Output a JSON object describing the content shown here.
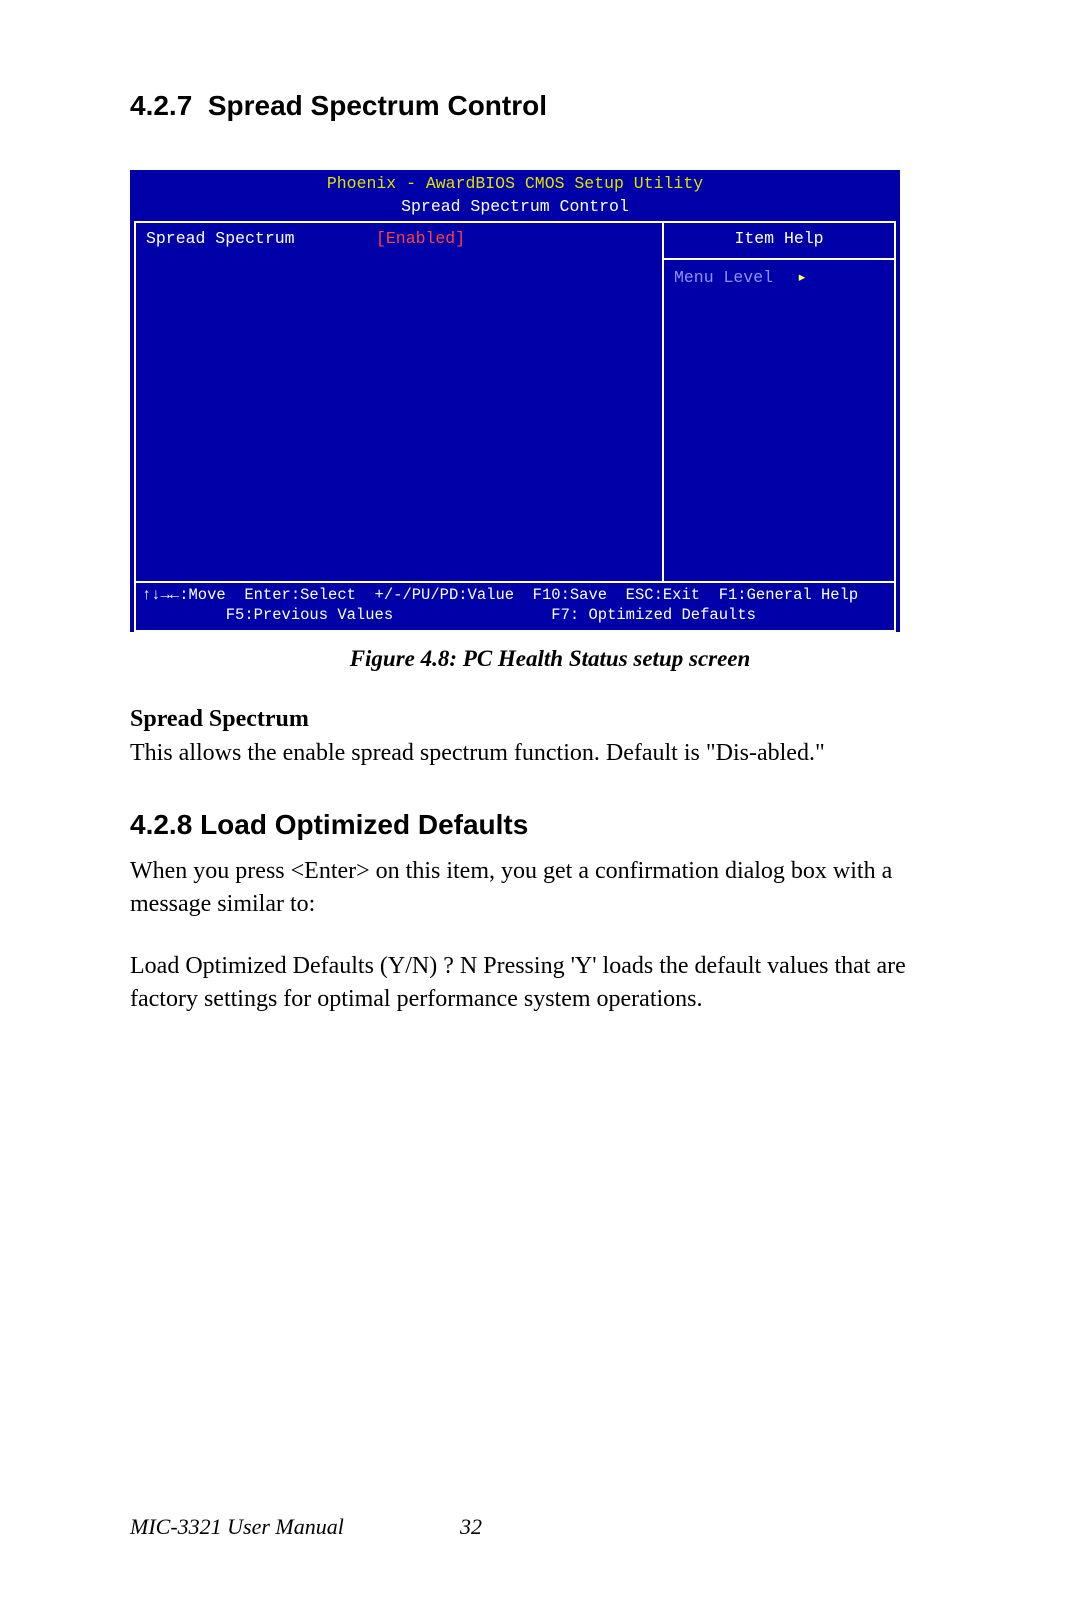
{
  "section1": {
    "number": "4.2.7",
    "title": "Spread Spectrum Control"
  },
  "bios": {
    "colors": {
      "background": "#0000a8",
      "title": "#e0e000",
      "text": "#ffffff",
      "value_highlight": "#ff4040",
      "menu_level": "#9090ff",
      "arrow": "#ffff60",
      "border": "#ffffff"
    },
    "font_family": "monospace",
    "title_line1": "Phoenix - AwardBIOS CMOS Setup Utility",
    "title_line2": "Spread Spectrum Control",
    "option": {
      "label": "Spread Spectrum",
      "value": "[Enabled]"
    },
    "help": {
      "title": "Item Help",
      "menu_level_label": "Menu Level",
      "arrow": "▸"
    },
    "footer_line1": "↑↓→←:Move  Enter:Select  +/-/PU/PD:Value  F10:Save  ESC:Exit  F1:General Help",
    "footer_line2": "         F5:Previous Values                 F7: Optimized Defaults"
  },
  "figure_caption": "Figure 4.8: PC Health Status setup screen",
  "spread_spectrum": {
    "heading": "Spread Spectrum",
    "body": "This allows the enable spread spectrum function. Default is \"Dis-abled.\""
  },
  "section2": {
    "number": "4.2.8",
    "title": "Load Optimized Defaults",
    "para1": "When you press <Enter> on this item, you get a confirmation dialog box with a message similar to:",
    "para2": "Load Optimized Defaults (Y/N) ? N Pressing 'Y' loads the default values that are factory settings for optimal performance system operations."
  },
  "footer": {
    "manual": "MIC-3321 User Manual",
    "page": "32"
  }
}
